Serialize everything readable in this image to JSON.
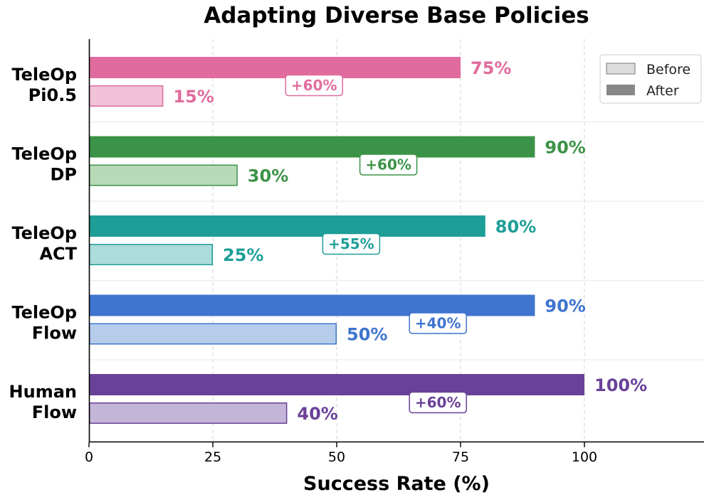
{
  "chart_data": {
    "type": "bar",
    "orientation": "horizontal",
    "title": "Adapting Diverse Base Policies",
    "xlabel": "Success Rate (%)",
    "ylabel": "",
    "xlim": [
      0,
      124
    ],
    "xticks": [
      0,
      25,
      50,
      75,
      100
    ],
    "grid": "vertical dashed",
    "legend_position": "top-right",
    "legend": [
      {
        "name": "Before",
        "color": "#dcdcdc"
      },
      {
        "name": "After",
        "color": "#888888"
      }
    ],
    "categories": [
      {
        "label_lines": [
          "TeleOp",
          "Pi0.5"
        ],
        "before": 15,
        "after": 75,
        "before_label": "15%",
        "after_label": "75%",
        "delta_label": "+60%",
        "color": "#e06c9f",
        "light": "#f2c3d8"
      },
      {
        "label_lines": [
          "TeleOp",
          "DP"
        ],
        "before": 30,
        "after": 90,
        "before_label": "30%",
        "after_label": "90%",
        "delta_label": "+60%",
        "color": "#3b9347",
        "light": "#b7dab9"
      },
      {
        "label_lines": [
          "TeleOp",
          "ACT"
        ],
        "before": 25,
        "after": 80,
        "before_label": "25%",
        "after_label": "80%",
        "delta_label": "+55%",
        "color": "#1f9e98",
        "light": "#acdcdb"
      },
      {
        "label_lines": [
          "TeleOp",
          "Flow"
        ],
        "before": 50,
        "after": 90,
        "before_label": "50%",
        "after_label": "90%",
        "delta_label": "+40%",
        "color": "#3f74cf",
        "light": "#b6cceb"
      },
      {
        "label_lines": [
          "Human",
          "Flow"
        ],
        "before": 40,
        "after": 100,
        "before_label": "40%",
        "after_label": "100%",
        "delta_label": "+60%",
        "color": "#6a4198",
        "light": "#c4b6d9"
      }
    ]
  }
}
